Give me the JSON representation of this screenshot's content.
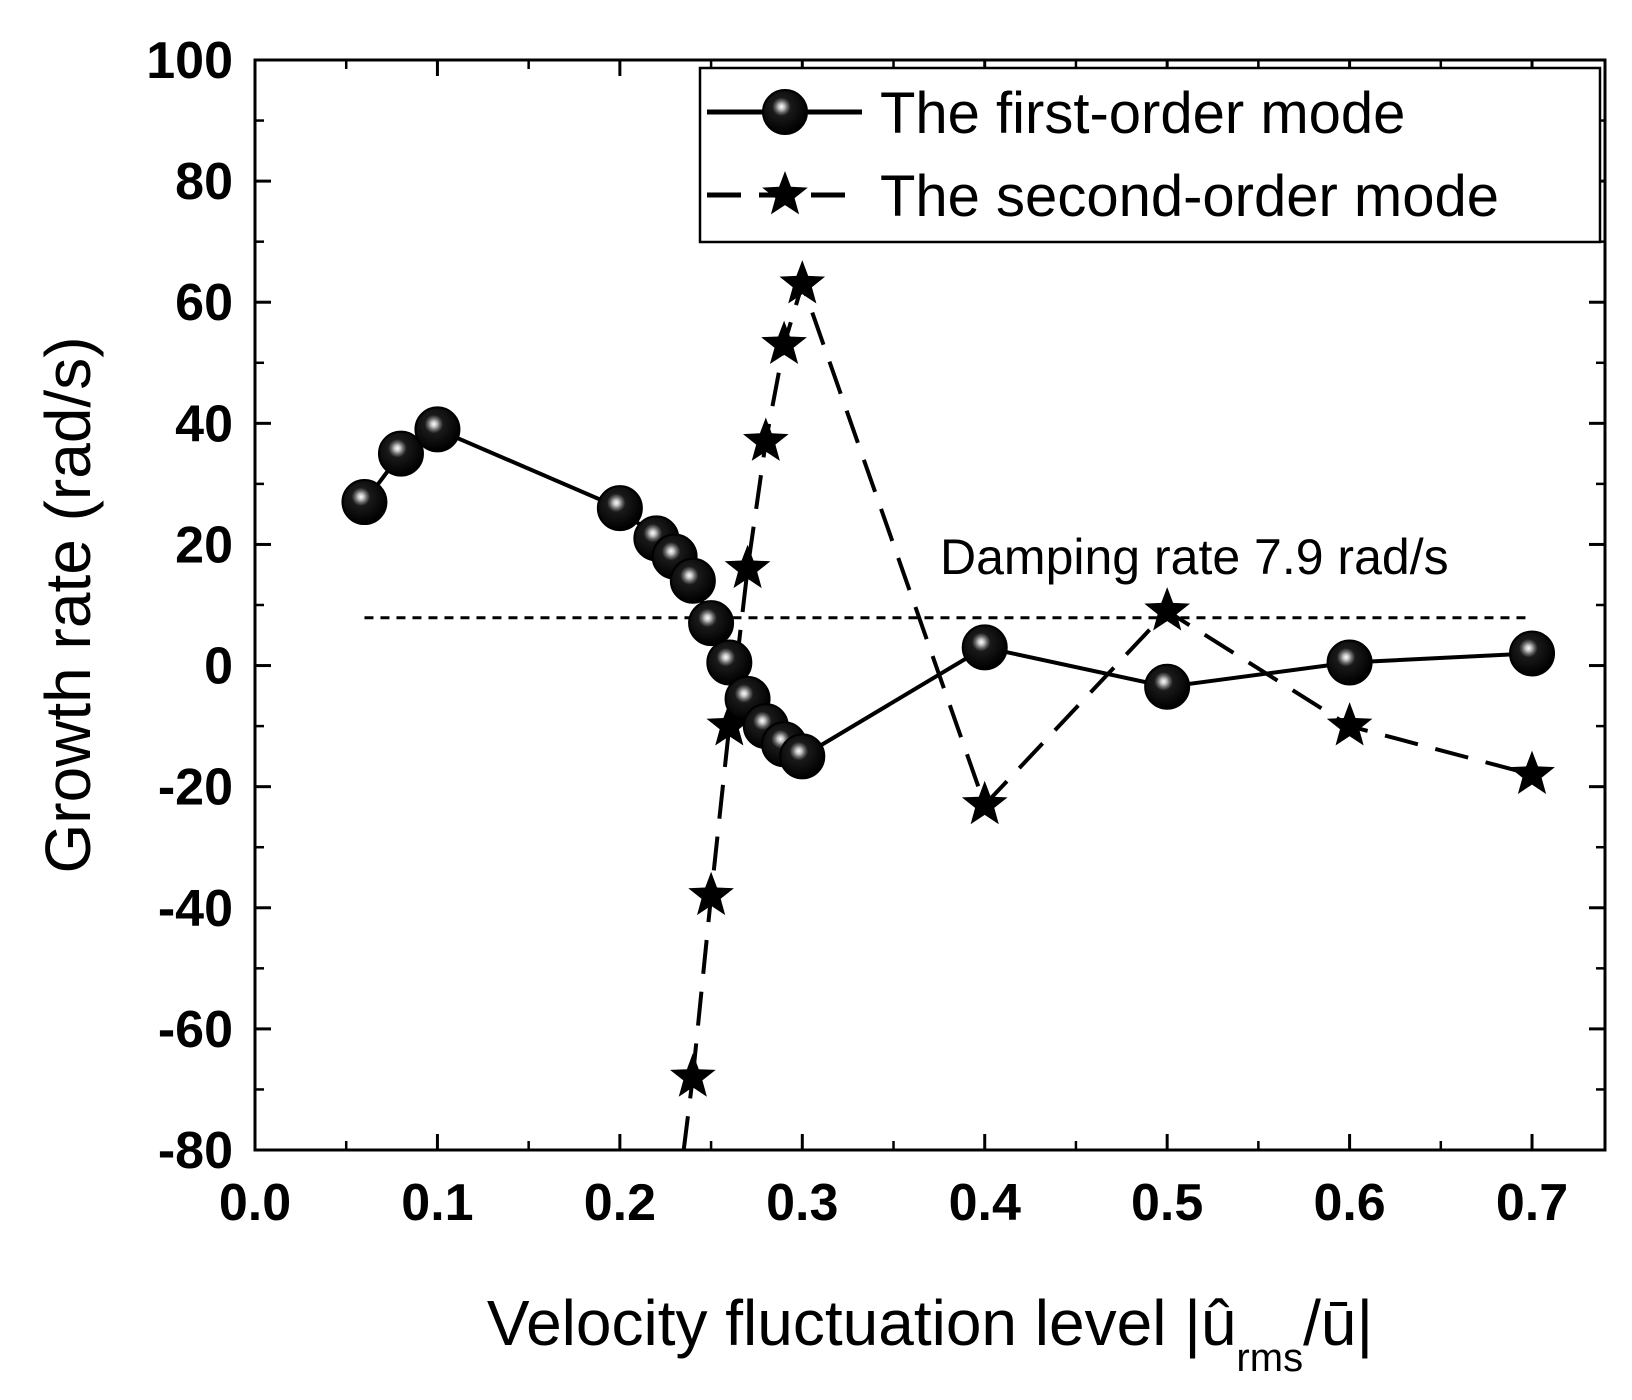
{
  "chart_data": {
    "type": "line",
    "xlabel": "Velocity fluctuation level |û",
    "xlabel_sub": "rms",
    "xlabel_tail": "/ū|",
    "ylabel": "Growth rate (rad/s)",
    "xlim": [
      0.0,
      0.74
    ],
    "ylim": [
      -80,
      100
    ],
    "x_ticks": [
      "0.0",
      "0.1",
      "0.2",
      "0.3",
      "0.4",
      "0.5",
      "0.6",
      "0.7"
    ],
    "x_tick_values": [
      0.0,
      0.1,
      0.2,
      0.3,
      0.4,
      0.5,
      0.6,
      0.7
    ],
    "y_ticks": [
      "-80",
      "-60",
      "-40",
      "-20",
      "0",
      "20",
      "40",
      "60",
      "80",
      "100"
    ],
    "y_tick_values": [
      -80,
      -60,
      -40,
      -20,
      0,
      20,
      40,
      60,
      80,
      100
    ],
    "legend_position": "top-right",
    "grid": false,
    "series": [
      {
        "name": "The first-order mode",
        "style": "solid",
        "marker": "sphere",
        "color": "#000000",
        "x": [
          0.06,
          0.08,
          0.1,
          0.2,
          0.22,
          0.23,
          0.24,
          0.25,
          0.26,
          0.27,
          0.28,
          0.29,
          0.3,
          0.4,
          0.5,
          0.6,
          0.7
        ],
        "y": [
          27,
          35,
          39,
          26,
          21,
          18,
          14,
          7,
          0.5,
          -5.5,
          -10,
          -13,
          -15,
          3,
          -3.5,
          0.5,
          2
        ]
      },
      {
        "name": "The second-order mode",
        "style": "dashed",
        "marker": "star",
        "color": "#000000",
        "x": [
          0.24,
          0.25,
          0.26,
          0.27,
          0.28,
          0.29,
          0.3,
          0.4,
          0.5,
          0.6,
          0.7
        ],
        "y": [
          -68,
          -38,
          -10,
          16,
          37,
          53,
          63,
          -23,
          9,
          -10,
          -18
        ]
      }
    ],
    "reference_line": {
      "label": "Damping rate 7.9 rad/s",
      "y": 7.9,
      "x_range": [
        0.06,
        0.7
      ],
      "style": "dotted"
    },
    "extra_dashed_segment": {
      "note": "second-order curve continues below the lower axis limit",
      "x": [
        0.235,
        0.24
      ],
      "y": [
        -80,
        -68
      ]
    }
  }
}
